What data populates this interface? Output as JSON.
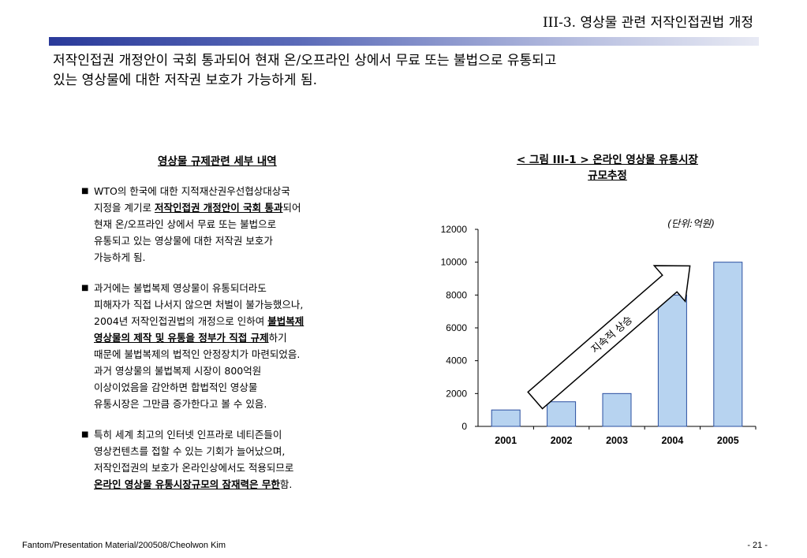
{
  "title": "III-3. 영상물 관련 저작인접권법 개정",
  "intro": [
    "저작인접권 개정안이 국회 통과되어 현재 온/오프라인 상에서 무료 또는 불법으로 유통되고",
    "있는 영상물에 대한 저작권 보호가 가능하게 됨."
  ],
  "left_heading": "영상물 규제관련 세부 내역",
  "bullets": [
    {
      "lines": [
        [
          {
            "t": "WTO의 한국에 대한 지적재산권우선협상대상국"
          }
        ],
        [
          {
            "t": "지정을 계기로 "
          },
          {
            "t": "저작인접권 개정안이 국회 통과",
            "em": true
          },
          {
            "t": "되어"
          }
        ],
        [
          {
            "t": "현재 온/오프라인 상에서 무료 또는 불법으로"
          }
        ],
        [
          {
            "t": "유통되고 있는 영상물에 대한 저작권 보호가"
          }
        ],
        [
          {
            "t": "가능하게 됨."
          }
        ]
      ]
    },
    {
      "lines": [
        [
          {
            "t": "과거에는 불법복제 영상물이 유통되더라도"
          }
        ],
        [
          {
            "t": "피해자가 직접 나서지 않으면 처벌이 불가능했으나,"
          }
        ],
        [
          {
            "t": "2004년 저작인접권법의 개정으로 인하여 "
          },
          {
            "t": "불법복제",
            "em": true
          }
        ],
        [
          {
            "t": "영상물의 제작 및 유통을 정부가 직접 규제",
            "em": true
          },
          {
            "t": "하기"
          }
        ],
        [
          {
            "t": "때문에 불법복제의 법적인 안정장치가 마련되었음."
          }
        ],
        [
          {
            "t": "과거 영상물의 불법복제 시장이 800억원"
          }
        ],
        [
          {
            "t": "이상이었음을 감안하면 합법적인 영상물"
          }
        ],
        [
          {
            "t": "유통시장은 그만큼 증가한다고 볼 수 있음."
          }
        ]
      ]
    },
    {
      "lines": [
        [
          {
            "t": "특히 세계 최고의 인터넷 인프라로 네티즌들이"
          }
        ],
        [
          {
            "t": "영상컨텐츠를 접할 수 있는 기회가 늘어났으며,"
          }
        ],
        [
          {
            "t": "저작인접권의 보호가 온라인상에서도 적용되므로"
          }
        ],
        [
          {
            "t": "온라인 영상물 유통시장규모의 잠재력은 무한",
            "em": true
          },
          {
            "t": "함."
          }
        ]
      ]
    }
  ],
  "bullet_symbol": "■",
  "figure_caption": [
    "< 그림 III-1 > 온라인 영상물 유통시장",
    "규모추정"
  ],
  "unit_label": "(단위:억원)",
  "chart_data": {
    "type": "bar",
    "categories": [
      "2001",
      "2002",
      "2003",
      "2004",
      "2005"
    ],
    "values": [
      1000,
      1500,
      2000,
      8000,
      10000
    ],
    "ylim": [
      0,
      12000
    ],
    "yticks": [
      0,
      2000,
      4000,
      6000,
      8000,
      10000,
      12000
    ],
    "title": "",
    "xlabel": "",
    "ylabel": "",
    "grid": false,
    "bar_color": "#b7d3f0",
    "bar_stroke": "#2a4fa0",
    "annotation": "지속적 상승"
  },
  "footer_left": "Fantom/Presentation Material/200508/Cheolwon Kim",
  "footer_right": "- 21 -"
}
